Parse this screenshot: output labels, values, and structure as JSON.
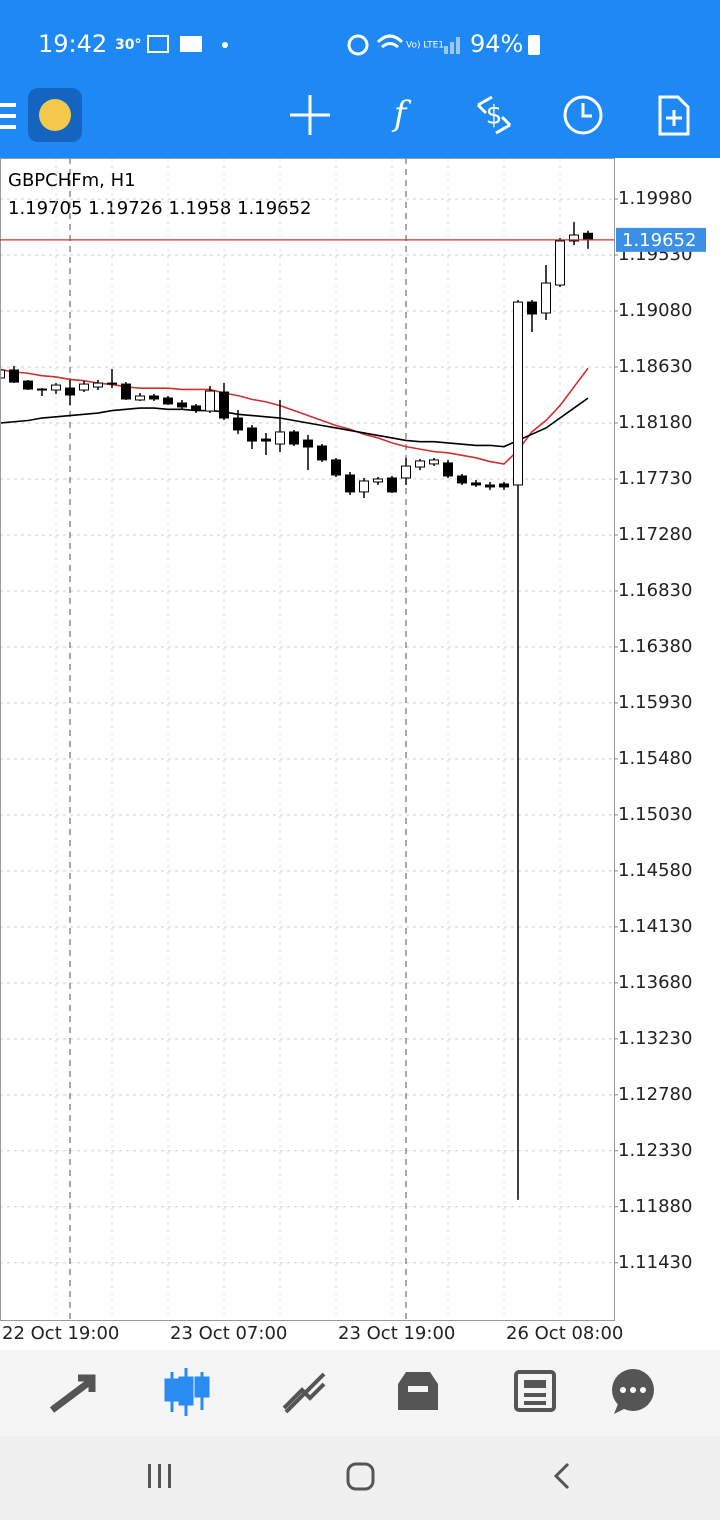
{
  "status_bar": {
    "time": "19:42",
    "temperature": "30°",
    "network": "Vo) LTE1",
    "battery": "94%"
  },
  "chart_data": {
    "type": "candlestick",
    "title": "GBPCHFm, H1",
    "categories": [
      "22 Oct 19:00",
      null,
      null,
      null,
      null,
      null,
      null,
      null,
      null,
      null,
      null,
      null,
      "23 Oct 07:00",
      null,
      null,
      null,
      null,
      null,
      null,
      null,
      null,
      null,
      null,
      null,
      "23 Oct 19:00",
      null,
      null,
      null,
      null,
      null,
      null,
      null,
      null,
      null,
      null,
      null,
      "26 Oct 08:00",
      null,
      null,
      null,
      null,
      null,
      null
    ],
    "open": [
      1.18542,
      1.18606,
      1.18517,
      1.18453,
      1.18445,
      1.18461,
      1.18445,
      1.18469,
      1.18501,
      1.18493,
      1.18365,
      1.18397,
      1.18381,
      1.18341,
      1.18317,
      1.18276,
      1.18429,
      1.1822,
      1.1814,
      1.18051,
      1.18011,
      1.18108,
      1.18043,
      1.17995,
      1.17883,
      1.17762,
      1.17626,
      1.17706,
      1.17738,
      1.17738,
      1.17826,
      1.17851,
      1.17859,
      1.17754,
      1.17698,
      1.17682,
      1.1769,
      1.17682,
      1.19152,
      1.19064,
      1.19289,
      1.19643,
      1.19705
    ],
    "high": [
      1.18646,
      1.18638,
      1.18526,
      1.18461,
      1.18501,
      1.18526,
      1.18517,
      1.18526,
      1.18614,
      1.18509,
      1.18421,
      1.18413,
      1.18397,
      1.18365,
      1.18333,
      1.18477,
      1.18501,
      1.18284,
      1.18164,
      1.181,
      1.18365,
      1.18124,
      1.18084,
      1.18011,
      1.17899,
      1.17786,
      1.17738,
      1.17746,
      1.17754,
      1.17899,
      1.17891,
      1.17899,
      1.17883,
      1.1777,
      1.17722,
      1.17706,
      1.17706,
      1.19168,
      1.19168,
      1.1945,
      1.19667,
      1.19795,
      1.19726
    ],
    "low": [
      1.18526,
      1.18501,
      1.18445,
      1.18397,
      1.18413,
      1.18325,
      1.18429,
      1.18445,
      1.18461,
      1.18365,
      1.18357,
      1.18357,
      1.18325,
      1.18292,
      1.1826,
      1.1826,
      1.18204,
      1.18092,
      1.17971,
      1.17923,
      1.17947,
      1.17995,
      1.17802,
      1.17867,
      1.17746,
      1.17601,
      1.17577,
      1.17682,
      1.17617,
      1.17682,
      1.17802,
      1.17834,
      1.17738,
      1.17682,
      1.17666,
      1.17642,
      1.17642,
      1.11936,
      1.18911,
      1.19008,
      1.19273,
      1.1961,
      1.1958
    ],
    "close": [
      1.18606,
      1.18509,
      1.18453,
      1.18445,
      1.18485,
      1.18405,
      1.18493,
      1.18501,
      1.18493,
      1.18373,
      1.18397,
      1.18373,
      1.18333,
      1.18309,
      1.18284,
      1.18437,
      1.1822,
      1.18124,
      1.18035,
      1.18035,
      1.18108,
      1.18011,
      1.17987,
      1.17883,
      1.17762,
      1.17626,
      1.17714,
      1.1773,
      1.17626,
      1.17834,
      1.17875,
      1.17883,
      1.17754,
      1.17698,
      1.17682,
      1.17666,
      1.17666,
      1.19152,
      1.19056,
      1.19305,
      1.19643,
      1.19691,
      1.19652
    ],
    "up_color": "#ffffff",
    "down_color": "#000000",
    "series": [
      {
        "color": "#d32f2f",
        "values": [
          1.1861,
          1.1859,
          1.1858,
          1.1856,
          1.1855,
          1.1853,
          1.1852,
          1.185,
          1.1849,
          1.1847,
          1.1846,
          1.1846,
          1.1846,
          1.1845,
          1.1845,
          1.1845,
          1.1842,
          1.184,
          1.1837,
          1.1835,
          1.1832,
          1.1828,
          1.1824,
          1.182,
          1.1816,
          1.1813,
          1.1809,
          1.1806,
          1.1802,
          1.1799,
          1.1797,
          1.1795,
          1.1794,
          1.1792,
          1.179,
          1.1787,
          1.1785,
          1.1796,
          1.1811,
          1.182,
          1.1832,
          1.1847,
          1.1862
        ]
      },
      {
        "color": "#000000",
        "values": [
          1.1818,
          1.1819,
          1.182,
          1.1822,
          1.1823,
          1.1824,
          1.1825,
          1.1826,
          1.1828,
          1.1829,
          1.183,
          1.183,
          1.1829,
          1.1829,
          1.1828,
          1.1828,
          1.1827,
          1.1825,
          1.1824,
          1.1823,
          1.1822,
          1.182,
          1.1818,
          1.1816,
          1.1814,
          1.1812,
          1.181,
          1.1808,
          1.1806,
          1.1804,
          1.1803,
          1.1803,
          1.1802,
          1.1801,
          1.18,
          1.18,
          1.1799,
          1.1804,
          1.1809,
          1.1814,
          1.1822,
          1.183,
          1.1838
        ]
      }
    ],
    "current_price": 1.19652,
    "current_price_color": "#d32f2f",
    "ylim": [
      1.1097,
      1.2031
    ],
    "yticks": [
      {
        "value": 1.1998,
        "label": "1.19980"
      },
      {
        "value": 1.1953,
        "label": "1.19530"
      },
      {
        "value": 1.1908,
        "label": "1.19080"
      },
      {
        "value": 1.1863,
        "label": "1.18630"
      },
      {
        "value": 1.1818,
        "label": "1.18180"
      },
      {
        "value": 1.1773,
        "label": "1.17730"
      },
      {
        "value": 1.1728,
        "label": "1.17280"
      },
      {
        "value": 1.1683,
        "label": "1.16830"
      },
      {
        "value": 1.1638,
        "label": "1.16380"
      },
      {
        "value": 1.1593,
        "label": "1.15930"
      },
      {
        "value": 1.1548,
        "label": "1.15480"
      },
      {
        "value": 1.1503,
        "label": "1.15030"
      },
      {
        "value": 1.1458,
        "label": "1.14580"
      },
      {
        "value": 1.1413,
        "label": "1.14130"
      },
      {
        "value": 1.1368,
        "label": "1.13680"
      },
      {
        "value": 1.1323,
        "label": "1.13230"
      },
      {
        "value": 1.1278,
        "label": "1.12780"
      },
      {
        "value": 1.1233,
        "label": "1.12330"
      },
      {
        "value": 1.1188,
        "label": "1.11880"
      },
      {
        "value": 1.1143,
        "label": "1.11430"
      }
    ],
    "grid": true
  }
}
